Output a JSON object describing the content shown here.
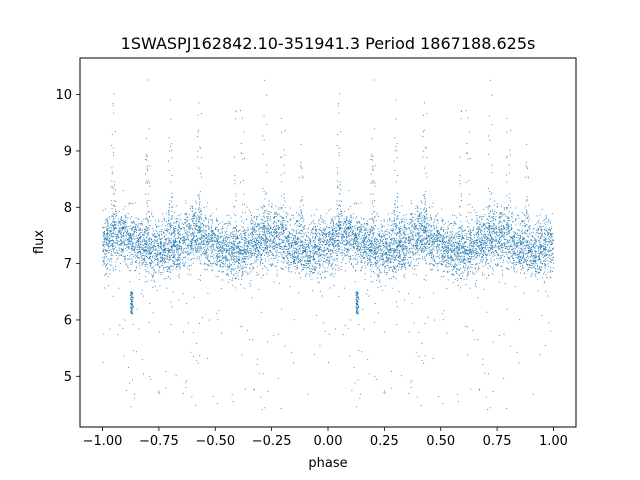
{
  "chart_data": {
    "type": "scatter",
    "title": "1SWASPJ162842.10-351941.3 Period 1867188.625s",
    "xlabel": "phase",
    "ylabel": "flux",
    "xlim": [
      -1.1,
      1.1
    ],
    "ylim": [
      4.1,
      10.65
    ],
    "xticks": [
      -1.0,
      -0.75,
      -0.5,
      -0.25,
      0.0,
      0.25,
      0.5,
      0.75,
      1.0
    ],
    "xtick_labels": [
      "−1.00",
      "−0.75",
      "−0.50",
      "−0.25",
      "0.00",
      "0.25",
      "0.50",
      "0.75",
      "1.00"
    ],
    "yticks": [
      5,
      6,
      7,
      8,
      9,
      10
    ],
    "ytick_labels": [
      "5",
      "6",
      "7",
      "8",
      "9",
      "10"
    ],
    "grid": false,
    "point_color": "#1f77b4",
    "folded_period": 1.0,
    "phase_range": [
      -1.0,
      1.0
    ],
    "baseline_flux": 7.35,
    "scatter_sd": 0.25,
    "num_points": 9000,
    "dip_features": [
      {
        "phase": -0.87,
        "flux_min": 6.1,
        "flux_max": 6.5
      },
      {
        "phase": 0.13,
        "flux_min": 6.1,
        "flux_max": 6.5
      }
    ],
    "flare_phases": [
      -0.95,
      -0.8,
      -0.7,
      -0.57,
      -0.38,
      -0.2,
      0.05,
      0.2,
      0.3,
      0.43,
      0.59,
      0.72,
      0.8,
      0.88
    ]
  }
}
